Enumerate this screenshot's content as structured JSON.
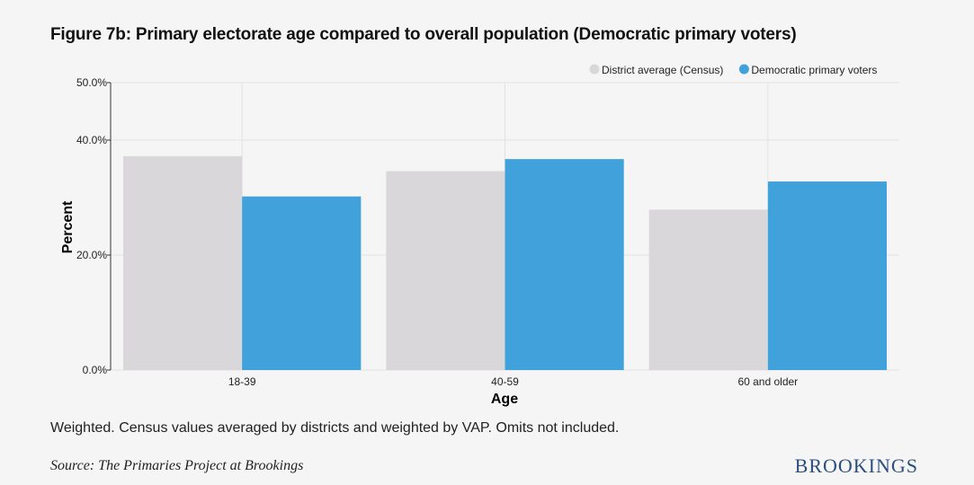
{
  "title": "Figure 7b: Primary electorate age compared to overall population (Democratic primary voters)",
  "note": "Weighted. Census values averaged by districts and weighted by VAP. Omits not included.",
  "source": "Source: The Primaries Project at Brookings",
  "logo": "BROOKINGS",
  "chart_data": {
    "type": "bar",
    "categories": [
      "18-39",
      "40-59",
      "60 and older"
    ],
    "series": [
      {
        "name": "District average (Census)",
        "color": "#d9d7da",
        "values": [
          37.2,
          34.6,
          27.9
        ]
      },
      {
        "name": "Democratic primary voters",
        "color": "#41a2db",
        "values": [
          30.2,
          36.7,
          32.8
        ]
      }
    ],
    "xlabel": "Age",
    "ylabel": "Percent",
    "ylim": [
      0,
      50
    ],
    "yticks": [
      0,
      20,
      40,
      50
    ],
    "ytick_labels": [
      "0.0%",
      "20.0%",
      "40.0%",
      "50.0%"
    ],
    "grid": true,
    "legend_position": "top-right"
  }
}
